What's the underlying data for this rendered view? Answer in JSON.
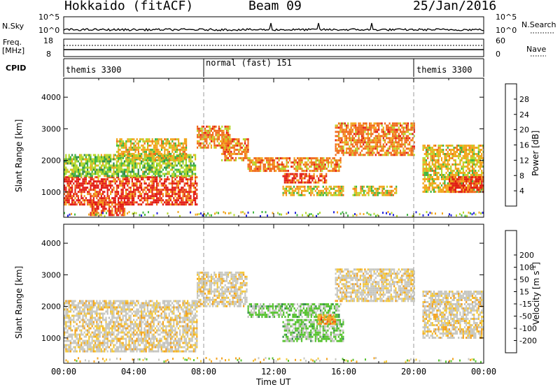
{
  "header": {
    "station": "Hokkaido (fitACF)",
    "beam": "Beam 09",
    "date": "25/Jan/2016"
  },
  "top_panels": {
    "nsky_label": "N.Sky",
    "nsky_ticks": [
      "10^5",
      "10^0"
    ],
    "nsearch_label": "N.Search",
    "nsearch_ticks": [
      "10^5",
      "10^0"
    ],
    "freq_label_1": "Freq.",
    "freq_label_2": "[MHz]",
    "freq_ticks": [
      "18",
      "8"
    ],
    "nave_label": "Nave",
    "nave_ticks": [
      "60",
      "0"
    ],
    "cpid_label": "CPID",
    "cpid_segments": [
      {
        "name": "themis 3300",
        "start": 0,
        "end": 8
      },
      {
        "name": "normal (fast) 151",
        "start": 8,
        "end": 20
      },
      {
        "name": "themis 3300",
        "start": 20,
        "end": 24
      }
    ]
  },
  "colors": {
    "power": [
      "#2222dd",
      "#1d5aa8",
      "#2e8a4a",
      "#3fb63f",
      "#b5d82a",
      "#f2a51b",
      "#f06a1a",
      "#e21b14"
    ],
    "velocity": [
      "#e01010",
      "#f25c10",
      "#f3a320",
      "#f4c838",
      "#c8c8c0",
      "#c0c0c0",
      "#55c22e",
      "#2e8a4a",
      "#1f5aa0",
      "#1c28c6"
    ],
    "ground_scatter": "#b8b8b8"
  },
  "chart_data": [
    {
      "type": "heatmap",
      "name": "power",
      "ylabel": "Slant Range [km]",
      "yticks": [
        1000,
        2000,
        3000,
        4000
      ],
      "ylim": [
        200,
        4600
      ],
      "xlim": [
        0,
        24
      ],
      "colorbar_label": "Power [dB]",
      "colorbar_ticks": [
        4,
        8,
        12,
        16,
        20,
        24,
        28
      ],
      "bands": [
        {
          "x0": 0,
          "x1": 7.6,
          "y0": 600,
          "y1": 1500,
          "level": 7
        },
        {
          "x0": 0,
          "x1": 7.5,
          "y0": 1500,
          "y1": 2200,
          "level": 4
        },
        {
          "x0": 1.5,
          "x1": 3.5,
          "y0": 250,
          "y1": 700,
          "level": 7
        },
        {
          "x0": 3,
          "x1": 7,
          "y0": 2000,
          "y1": 2700,
          "level": 5
        },
        {
          "x0": 7.6,
          "x1": 9.5,
          "y0": 2400,
          "y1": 3100,
          "level": 6
        },
        {
          "x0": 9,
          "x1": 10.5,
          "y0": 2000,
          "y1": 2700,
          "level": 6
        },
        {
          "x0": 10.5,
          "x1": 15.8,
          "y0": 1700,
          "y1": 2100,
          "level": 6
        },
        {
          "x0": 12.5,
          "x1": 15,
          "y0": 1300,
          "y1": 1600,
          "level": 7
        },
        {
          "x0": 12.5,
          "x1": 16,
          "y0": 900,
          "y1": 1200,
          "level": 5
        },
        {
          "x0": 15.5,
          "x1": 20,
          "y0": 2200,
          "y1": 3200,
          "level": 6
        },
        {
          "x0": 16.5,
          "x1": 19,
          "y0": 900,
          "y1": 1200,
          "level": 5
        },
        {
          "x0": 20.5,
          "x1": 24,
          "y0": 1000,
          "y1": 2500,
          "level": 5
        },
        {
          "x0": 22,
          "x1": 24,
          "y0": 1000,
          "y1": 1500,
          "level": 7
        }
      ]
    },
    {
      "type": "heatmap",
      "name": "velocity",
      "xlabel": "Time UT",
      "ylabel": "Slant Range [km]",
      "yticks": [
        1000,
        2000,
        3000,
        4000
      ],
      "ylim": [
        200,
        4600
      ],
      "xlim": [
        0,
        24
      ],
      "xticks": [
        "00:00",
        "04:00",
        "08:00",
        "12:00",
        "16:00",
        "20:00",
        "00:00"
      ],
      "colorbar_label": "Velocity [m s^-1]",
      "colorbar_ticks": [
        -200,
        -100,
        -50,
        -15,
        15,
        50,
        100,
        200
      ],
      "bands": [
        {
          "x0": 0,
          "x1": 7.6,
          "y0": 600,
          "y1": 2200,
          "level": 4
        },
        {
          "x0": 7.6,
          "x1": 10.5,
          "y0": 2000,
          "y1": 3100,
          "level": 4
        },
        {
          "x0": 10.5,
          "x1": 15.8,
          "y0": 1700,
          "y1": 2100,
          "level": 6
        },
        {
          "x0": 12.5,
          "x1": 16,
          "y0": 900,
          "y1": 1600,
          "level": 6
        },
        {
          "x0": 15.5,
          "x1": 20,
          "y0": 2200,
          "y1": 3200,
          "level": 4
        },
        {
          "x0": 20.5,
          "x1": 24,
          "y0": 1000,
          "y1": 2500,
          "level": 4
        },
        {
          "x0": 14.5,
          "x1": 15.5,
          "y0": 1450,
          "y1": 1750,
          "level": 2
        }
      ]
    }
  ],
  "xlabel": "Time UT",
  "xticks": [
    "00:00",
    "04:00",
    "08:00",
    "12:00",
    "16:00",
    "20:00",
    "00:00"
  ]
}
